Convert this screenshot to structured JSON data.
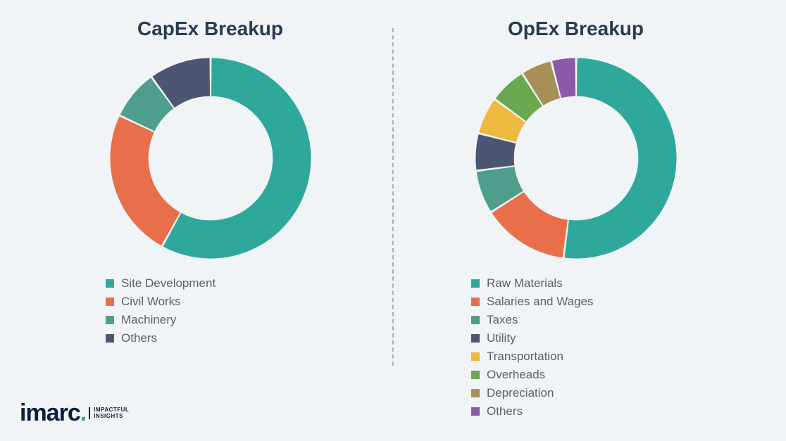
{
  "background_color": "#f2f5f6",
  "divider_color": "#a9b2b8",
  "title_color": "#2a3b50",
  "legend_text_color": "#5a6168",
  "capex": {
    "type": "donut",
    "title": "CapEx Breakup",
    "inner_radius_ratio": 0.62,
    "start_angle_deg": -90,
    "slices": [
      {
        "label": "Site Development",
        "value": 58,
        "color": "#2fa89c"
      },
      {
        "label": "Civil Works",
        "value": 24,
        "color": "#e86f4a"
      },
      {
        "label": "Machinery",
        "value": 8,
        "color": "#4f9e8c"
      },
      {
        "label": "Others",
        "value": 10,
        "color": "#4c5571"
      }
    ]
  },
  "opex": {
    "type": "donut",
    "title": "OpEx Breakup",
    "inner_radius_ratio": 0.62,
    "start_angle_deg": -90,
    "slices": [
      {
        "label": "Raw Materials",
        "value": 52,
        "color": "#2fa89c"
      },
      {
        "label": "Salaries and Wages",
        "value": 14,
        "color": "#e86f4a"
      },
      {
        "label": "Taxes",
        "value": 7,
        "color": "#4f9e8c"
      },
      {
        "label": "Utility",
        "value": 6,
        "color": "#4c5571"
      },
      {
        "label": "Transportation",
        "value": 6,
        "color": "#edb93e"
      },
      {
        "label": "Overheads",
        "value": 6,
        "color": "#6aa850"
      },
      {
        "label": "Depreciation",
        "value": 5,
        "color": "#a88f58"
      },
      {
        "label": "Others",
        "value": 4,
        "color": "#8a5aa8"
      }
    ]
  },
  "logo": {
    "brand": "imarc",
    "tagline_line1": "IMPACTFUL",
    "tagline_line2": "INSIGHTS",
    "brand_color": "#0a1f3c",
    "accent_color": "#2aa6a0"
  }
}
